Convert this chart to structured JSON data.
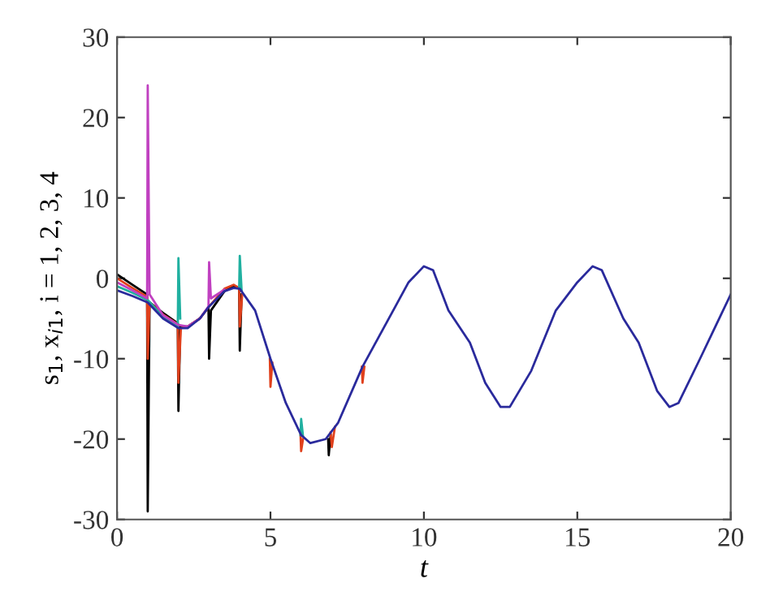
{
  "chart_data": {
    "type": "line",
    "xlabel": "t",
    "ylabel": "s$_{1}$, x$_{i1}$, i = 1, 2, 3, 4",
    "xlim": [
      0,
      20
    ],
    "ylim": [
      -30,
      30
    ],
    "xticks": [
      0,
      5,
      10,
      15,
      20
    ],
    "yticks": [
      -30,
      -20,
      -10,
      0,
      10,
      20,
      30
    ],
    "grid": false,
    "legend": false,
    "series": [
      {
        "color": "#000000",
        "x": [
          0,
          0.5,
          0.98,
          1.0,
          1.06,
          1.5,
          1.98,
          2.0,
          2.06,
          2.3,
          2.7,
          2.98,
          3.0,
          3.06,
          3.5,
          3.8,
          3.98,
          4.0,
          4.06,
          5,
          6.88,
          6.9,
          6.96
        ],
        "values": [
          0.5,
          -0.8,
          -2,
          -29,
          -3,
          -4.3,
          -5.6,
          -16.5,
          -6,
          -6,
          -5,
          -3.6,
          -10,
          -4,
          -1.6,
          -1,
          -1.2,
          -9,
          -2,
          null,
          -20,
          -22,
          -19.5
        ]
      },
      {
        "color": "#e0401c",
        "x": [
          0,
          0.5,
          0.98,
          1.0,
          1.06,
          1.5,
          1.98,
          2.0,
          2.08,
          2.3,
          2.7,
          3.0,
          3.5,
          3.8,
          3.98,
          4.0,
          4.08,
          4.5,
          4.98,
          5.0,
          5.06,
          5.5,
          5.98,
          6.0,
          6.06,
          6.5,
          6.96,
          7.0,
          7.1,
          7.5,
          7.98,
          8.0,
          8.06
        ],
        "values": [
          0,
          -1.2,
          -2.3,
          -10,
          -3,
          -4.5,
          -5.7,
          -13,
          -6.2,
          -6,
          -5,
          -3.5,
          -1.3,
          -0.8,
          -1.2,
          -6,
          -2,
          null,
          -10,
          -13.5,
          -10.5,
          null,
          -19.5,
          -21.5,
          -20,
          null,
          -19.2,
          -21,
          -18.5,
          null,
          -11,
          -13,
          -11
        ]
      },
      {
        "color": "#20b0a0",
        "x": [
          0,
          0.5,
          1.0,
          1.5,
          1.98,
          2.0,
          2.06,
          2.5,
          3.98,
          4.0,
          4.06,
          5,
          5.98,
          6.0,
          6.06
        ],
        "values": [
          -1,
          -1.8,
          -2.7,
          -4.8,
          -6,
          2.5,
          -5,
          null,
          -1.2,
          2.8,
          -1.5,
          null,
          -19.5,
          -17.5,
          -19.6
        ]
      },
      {
        "color": "#c040c0",
        "x": [
          0,
          0.5,
          0.98,
          1.0,
          1.06,
          1.5,
          2.0,
          2.3,
          2.7,
          2.98,
          3.0,
          3.06,
          3.5
        ],
        "values": [
          -0.5,
          -1.5,
          -2.5,
          24,
          -2,
          -4.6,
          -5.8,
          -6,
          -5,
          -3.5,
          2,
          -2.5,
          -1.4
        ]
      },
      {
        "color": "#2a2a9c",
        "x": [
          0,
          0.5,
          1.0,
          1.5,
          2.0,
          2.3,
          2.7,
          3.0,
          3.5,
          3.8,
          4.0,
          4.5,
          5,
          5.5,
          6,
          6.3,
          6.8,
          7.2,
          8,
          9,
          9.5,
          10,
          10.3,
          10.8,
          11.5,
          12,
          12.5,
          12.8,
          13.5,
          14.3,
          15,
          15.5,
          15.8,
          16.5,
          17,
          17.6,
          18,
          18.3,
          19,
          19.5,
          20
        ],
        "values": [
          -1.5,
          -2.2,
          -3,
          -5,
          -6.2,
          -6.2,
          -5,
          -3.5,
          -1.6,
          -1.2,
          -1.3,
          -4,
          -10,
          -15.5,
          -19.5,
          -20.5,
          -20,
          -18,
          -11,
          -4,
          -0.5,
          1.5,
          1,
          -4,
          -8,
          -13,
          -16,
          -16,
          -11.5,
          -4,
          -0.5,
          1.5,
          1,
          -5,
          -8,
          -14,
          -16,
          -15.5,
          -10,
          -6,
          -2
        ]
      }
    ]
  }
}
